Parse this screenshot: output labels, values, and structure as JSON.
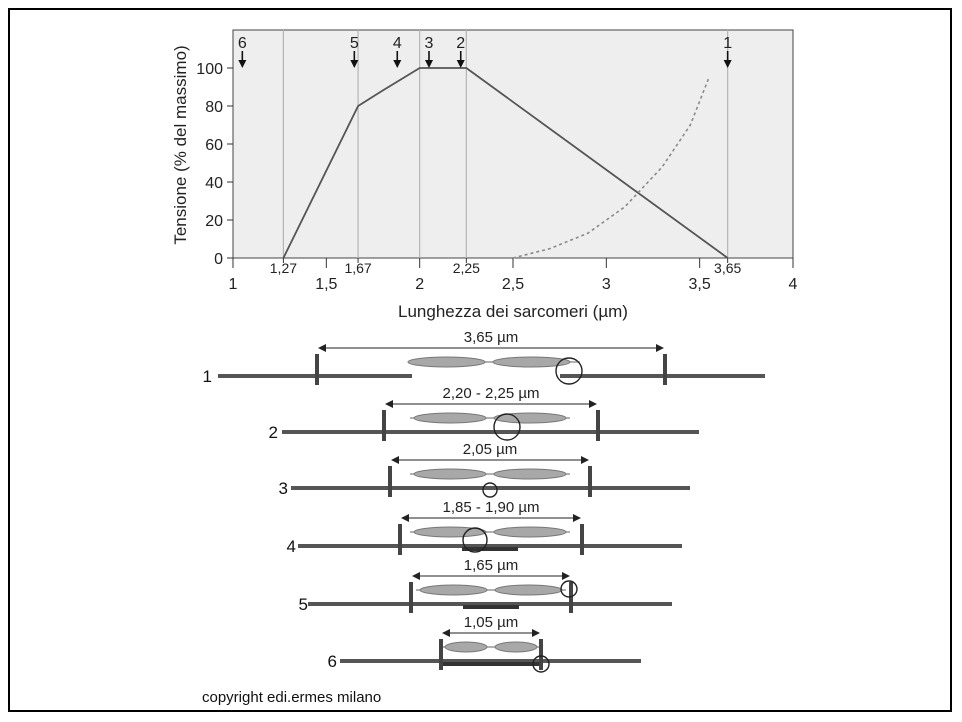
{
  "chart_data": {
    "type": "line",
    "title": "",
    "xlabel": "Lunghezza dei sarcomeri (µm)",
    "ylabel": "Tensione (% del massimo)",
    "xlim": [
      1,
      4
    ],
    "ylim": [
      0,
      120
    ],
    "x_ticks": [
      "1",
      "1,5",
      "2",
      "2,5",
      "3",
      "3,5",
      "4"
    ],
    "x_tick_values": [
      1,
      1.5,
      2,
      2.5,
      3,
      3.5,
      4
    ],
    "x_marks": [
      "1,27",
      "1,67",
      "2,25",
      "3,65"
    ],
    "x_mark_values": [
      1.27,
      1.67,
      2.25,
      3.65
    ],
    "y_ticks": [
      "0",
      "20",
      "40",
      "60",
      "80",
      "100"
    ],
    "y_tick_values": [
      0,
      20,
      40,
      60,
      80,
      100
    ],
    "vertical_lines": [
      1.27,
      1.67,
      2.0,
      2.25,
      3.65
    ],
    "series": [
      {
        "style": "solid",
        "x": [
          1.27,
          1.67,
          1.8,
          2.0,
          2.25,
          3.65
        ],
        "y": [
          0,
          80,
          88,
          100,
          100,
          0
        ]
      },
      {
        "style": "dotted",
        "x": [
          2.5,
          2.7,
          2.9,
          3.1,
          3.3,
          3.45,
          3.55
        ],
        "y": [
          0,
          5,
          13,
          27,
          48,
          70,
          95
        ]
      }
    ],
    "markers": [
      {
        "label": "6",
        "x": 1.05
      },
      {
        "label": "5",
        "x": 1.65
      },
      {
        "label": "4",
        "x": 1.88
      },
      {
        "label": "3",
        "x": 2.05
      },
      {
        "label": "2",
        "x": 2.22
      },
      {
        "label": "1",
        "x": 3.65
      }
    ]
  },
  "sarcomeres": [
    {
      "number": "1",
      "length_label": "3,65 µm"
    },
    {
      "number": "2",
      "length_label": "2,20 - 2,25 µm"
    },
    {
      "number": "3",
      "length_label": "2,05 µm"
    },
    {
      "number": "4",
      "length_label": "1,85 - 1,90 µm"
    },
    {
      "number": "5",
      "length_label": "1,65 µm"
    },
    {
      "number": "6",
      "length_label": "1,05 µm"
    }
  ],
  "copyright": "copyright edi.ermes milano"
}
